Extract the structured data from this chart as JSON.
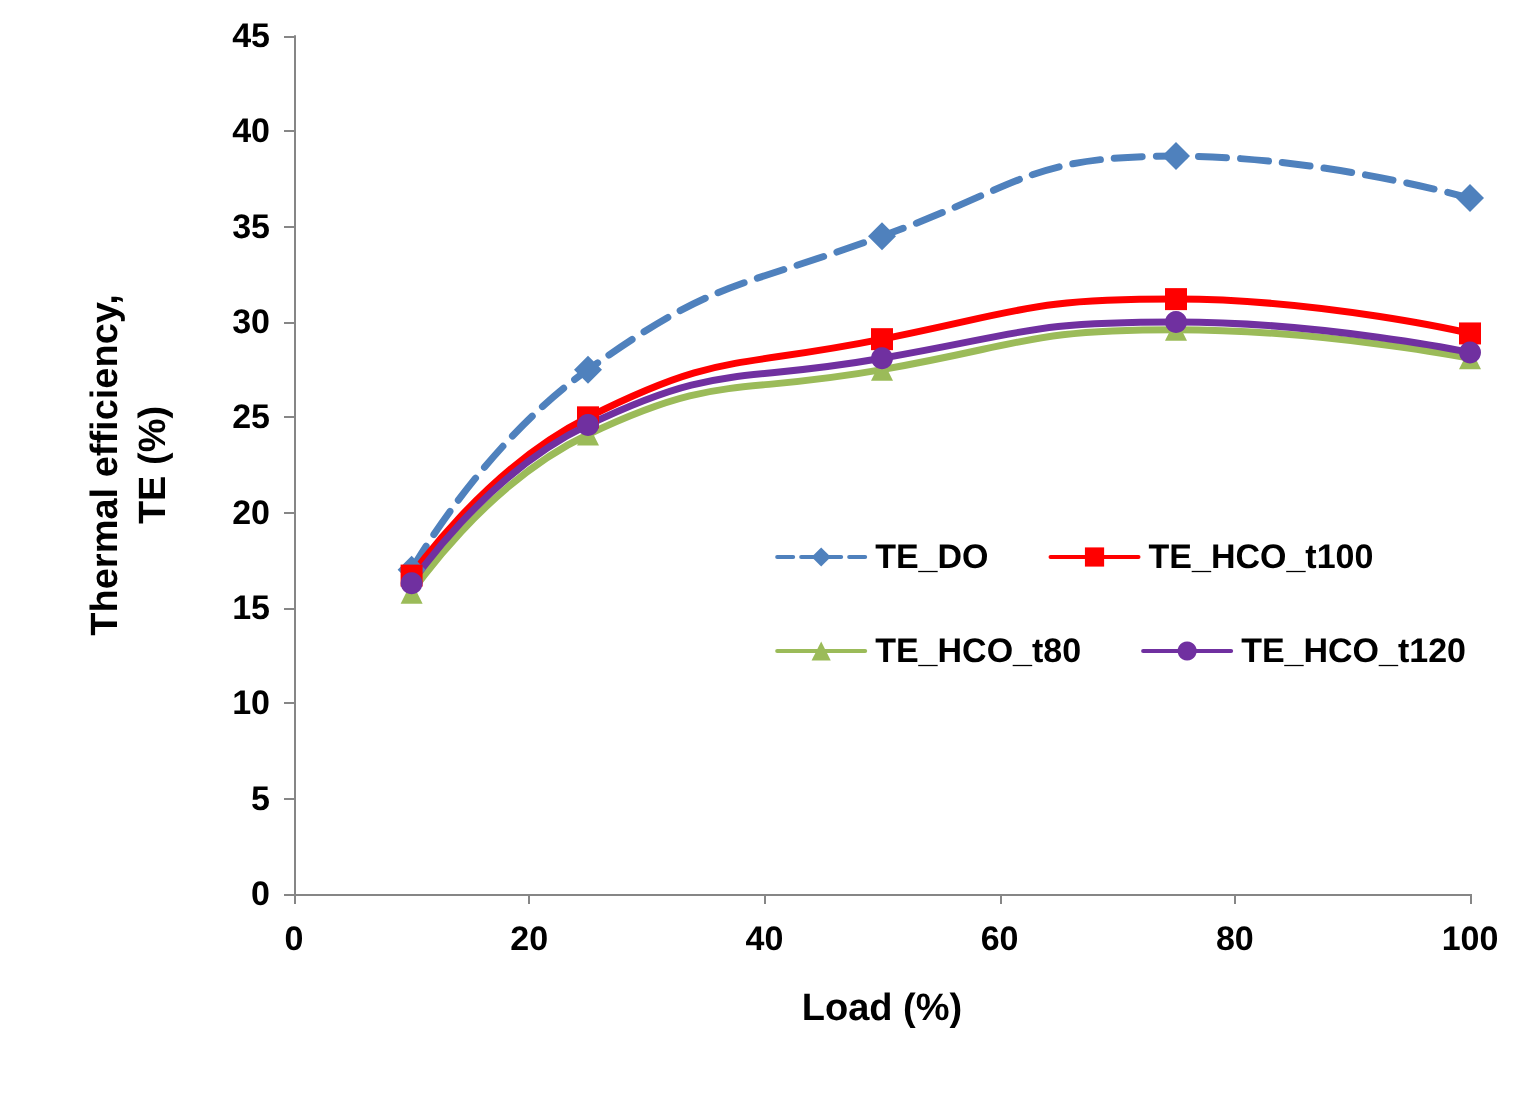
{
  "chart_data": {
    "type": "line",
    "xlabel": "Load (%)",
    "ylabel": "Thermal efficiency,\nTE (%)",
    "x": [
      10,
      25,
      50,
      75,
      100
    ],
    "series": [
      {
        "name": "TE_DO",
        "color": "#4f81bd",
        "values": [
          17,
          27.5,
          34.5,
          38.7,
          36.5
        ],
        "marker": "diamond",
        "line_style": "dashed"
      },
      {
        "name": "TE_HCO_t100",
        "color": "#ff0000",
        "values": [
          16.7,
          25,
          29.1,
          31.2,
          29.4
        ],
        "marker": "square",
        "line_style": "solid"
      },
      {
        "name": "TE_HCO_t80",
        "color": "#9bbb59",
        "values": [
          15.8,
          24.1,
          27.5,
          29.6,
          28.1
        ],
        "marker": "triangle",
        "line_style": "solid"
      },
      {
        "name": "TE_HCO_t120",
        "color": "#7030a0",
        "values": [
          16.3,
          24.6,
          28.1,
          30,
          28.4
        ],
        "marker": "circle",
        "line_style": "solid"
      }
    ],
    "xlim": [
      0,
      100
    ],
    "xticks": [
      0,
      20,
      40,
      60,
      80,
      100
    ],
    "ylim": [
      0,
      45
    ],
    "yticks": [
      0,
      5,
      10,
      15,
      20,
      25,
      30,
      35,
      40,
      45
    ],
    "grid": false,
    "legend": "center right"
  }
}
